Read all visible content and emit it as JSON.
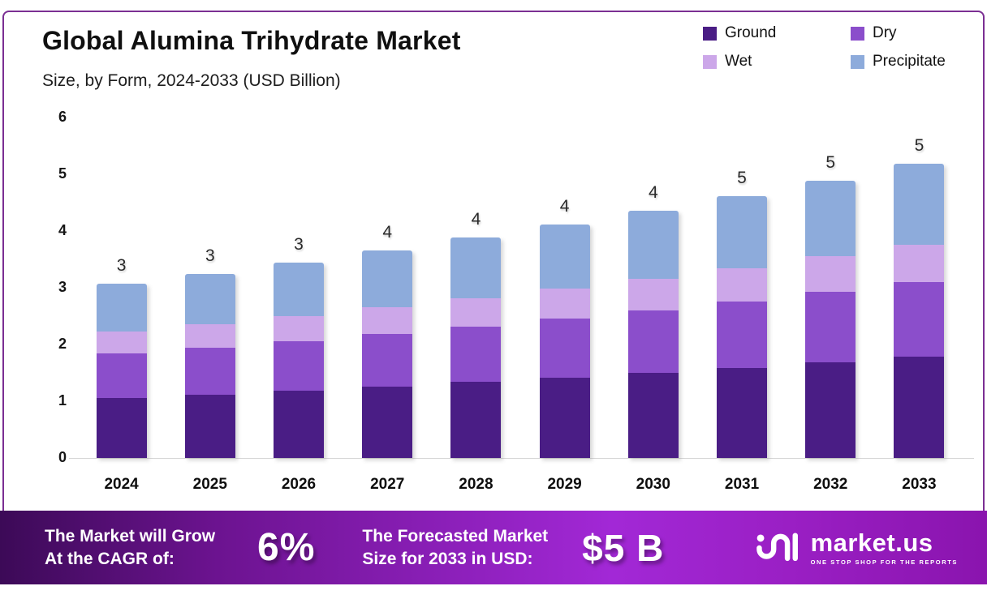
{
  "header": {
    "title": "Global Alumina Trihydrate Market",
    "subtitle": "Size, by Form, 2024-2033 (USD Billion)"
  },
  "colors": {
    "ground": "#4a1d85",
    "dry": "#8b4ecb",
    "wet": "#cca7e9",
    "precipitate": "#8dabdb",
    "frame_border": "#7b2f93",
    "banner_gradient": [
      "#3c0a57",
      "#a228d6",
      "#8a14ae"
    ]
  },
  "legend": [
    {
      "label": "Ground",
      "color": "#4a1d85"
    },
    {
      "label": "Dry",
      "color": "#8b4ecb"
    },
    {
      "label": "Wet",
      "color": "#cca7e9"
    },
    {
      "label": "Precipitate",
      "color": "#8dabdb"
    }
  ],
  "chart_data": {
    "type": "bar",
    "stacked": true,
    "title": "Global Alumina Trihydrate Market Size, by Form, 2024-2033 (USD Billion)",
    "categories": [
      "2024",
      "2025",
      "2026",
      "2027",
      "2028",
      "2029",
      "2030",
      "2031",
      "2032",
      "2033"
    ],
    "series": [
      {
        "name": "Ground",
        "color": "#4a1d85",
        "values": [
          1.06,
          1.12,
          1.19,
          1.26,
          1.34,
          1.42,
          1.5,
          1.59,
          1.69,
          1.79
        ]
      },
      {
        "name": "Dry",
        "color": "#8b4ecb",
        "values": [
          0.78,
          0.82,
          0.87,
          0.93,
          0.98,
          1.04,
          1.1,
          1.17,
          1.24,
          1.31
        ]
      },
      {
        "name": "Wet",
        "color": "#cca7e9",
        "values": [
          0.39,
          0.42,
          0.44,
          0.47,
          0.5,
          0.53,
          0.56,
          0.59,
          0.63,
          0.66
        ]
      },
      {
        "name": "Precipitate",
        "color": "#8dabdb",
        "values": [
          0.84,
          0.89,
          0.95,
          1.0,
          1.06,
          1.12,
          1.2,
          1.27,
          1.33,
          1.43
        ]
      }
    ],
    "totals": [
      3.07,
      3.25,
      3.45,
      3.66,
      3.88,
      4.11,
      4.36,
      4.62,
      4.89,
      5.19
    ],
    "total_labels": [
      "3",
      "3",
      "3",
      "4",
      "4",
      "4",
      "4",
      "5",
      "5",
      "5"
    ],
    "xlabel": "",
    "ylabel": "",
    "ylim": [
      0,
      6
    ],
    "yticks": [
      0,
      1,
      2,
      3,
      4,
      5,
      6
    ],
    "grid": false,
    "legend_position": "top-right"
  },
  "banner": {
    "cagr_label_line1": "The Market will Grow",
    "cagr_label_line2": "At the CAGR of:",
    "cagr_value": "6%",
    "forecast_label_line1": "The Forecasted Market",
    "forecast_label_line2": "Size for 2033 in USD:",
    "forecast_value": "$5 B",
    "logo_name": "market.us",
    "logo_tagline": "ONE STOP SHOP FOR THE REPORTS"
  }
}
